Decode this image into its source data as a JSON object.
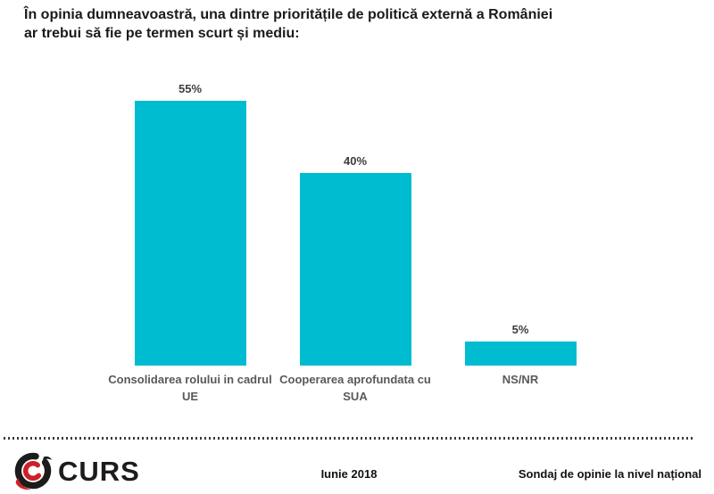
{
  "title": "În opinia dumneavoastră, una dintre prioritățile de politică externă a României\nar trebui să fie pe termen scurt și mediu:",
  "chart_data": {
    "type": "bar",
    "orientation": "vertical",
    "categories": [
      "Consolidarea rolului in cadrul UE",
      "Cooperarea aprofundata cu SUA",
      "NS/NR"
    ],
    "category_display": [
      "Consolidarea rolului in cadrul\nUE",
      "Cooperarea aprofundata cu\nSUA",
      "NS/NR"
    ],
    "values": [
      55,
      40,
      5
    ],
    "value_labels": [
      "55%",
      "40%",
      "5%"
    ],
    "unit": "%",
    "title": "În opinia dumneavoastră, una dintre prioritățile de politică externă a României ar trebui să fie pe termen scurt și mediu:",
    "xlabel": "",
    "ylabel": "",
    "ylim": [
      0,
      60
    ],
    "grid": false,
    "legend": false,
    "bar_color": "#00bcd0"
  },
  "colors": {
    "bar": "#00bcd0",
    "title_text": "#1a1a1a",
    "value_label": "#3d3d3d",
    "category_label": "#595959",
    "logo_black": "#1c1c1c",
    "logo_red": "#cc2027"
  },
  "footer": {
    "logo_text": "CURS",
    "date": "Iunie 2018",
    "note": "Sondaj de opinie la nivel național"
  }
}
